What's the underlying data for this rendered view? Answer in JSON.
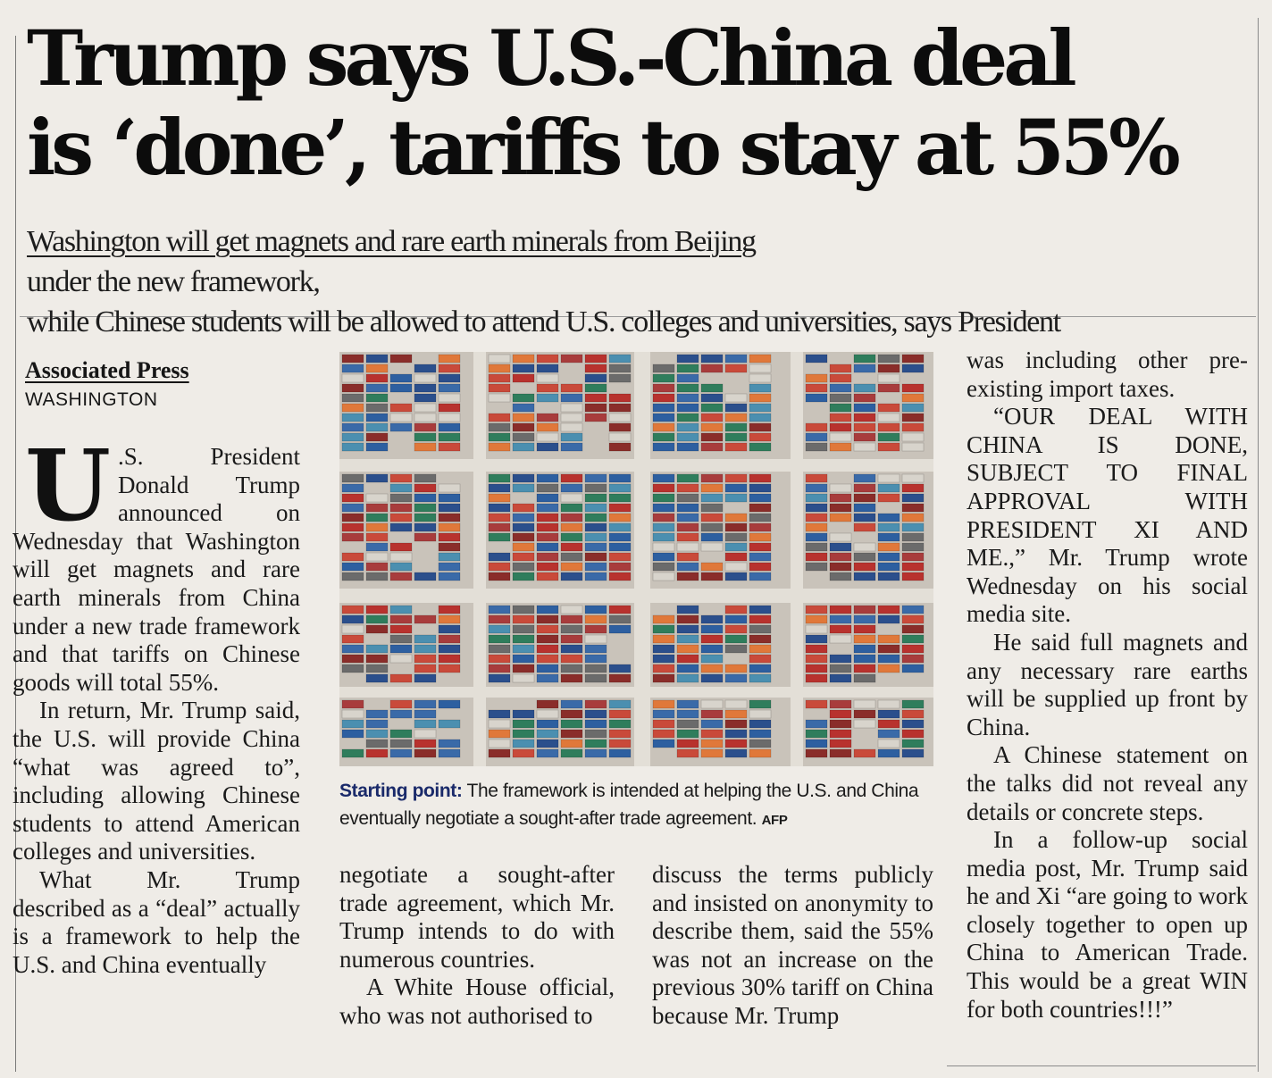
{
  "headline": {
    "line1": "Trump says U.S.-China deal",
    "line2": "is ‘done’, tariffs to stay at 55%"
  },
  "deck": {
    "line1_underlined": "Washington will get magnets and rare earth minerals from Beijing",
    "line1_rest": " under the new framework,",
    "line2": "while Chinese students will be allowed to attend U.S. colleges and universities, says President"
  },
  "byline": "Associated Press",
  "dateline": "WASHINGTON",
  "photo": {
    "caption_label": "Starting point:",
    "caption_text": " The framework is intended at helping the U.S. and China eventually negotiate a sought-after trade agreement. ",
    "credit": "AFP"
  },
  "article": {
    "dropcap": "U",
    "p1": ".S. President Donald Trump announced on Wednesday that Washington will get magnets and rare earth minerals from China under a new trade framework and that tariffs on Chinese goods will total 55%.",
    "p2": "In return, Mr. Trump said, the U.S. will provide China “what was agreed to”, including allowing Chinese students to attend American colleges and universities.",
    "p3": "What Mr. Trump described as a “deal” actually is a framework to help the U.S. and China eventually",
    "col2_p1": "negotiate a sought-after trade agreement, which Mr. Trump intends to do with numerous countries.",
    "col2_p2": "A White House official, who was not authorised to",
    "col3_p1": "discuss the terms publicly and insisted on anonymity to describe them, said the 55% was not an increase on the previous 30% tariff on China because Mr. Trump",
    "col4_p1": "was including other pre-existing import taxes.",
    "col4_p2": "“OUR DEAL WITH CHINA IS DONE, SUBJECT TO FINAL APPROVAL WITH PRESIDENT XI AND ME.,” Mr. Trump wrote Wednesday on his social media site.",
    "col4_p3": "He said full magnets and any necessary rare earths will be supplied up front by China.",
    "col4_p4": "A Chinese statement on the talks did not reveal any details or concrete steps.",
    "col4_p5": "In a follow-up social media post, Mr. Trump said he and Xi “are going to work closely together to open up China to American Trade. This would be a great WIN for both countries!!!”"
  },
  "colors": {
    "paper": "#efece7",
    "ink": "#161616",
    "caption_label": "#1a2a6a"
  }
}
